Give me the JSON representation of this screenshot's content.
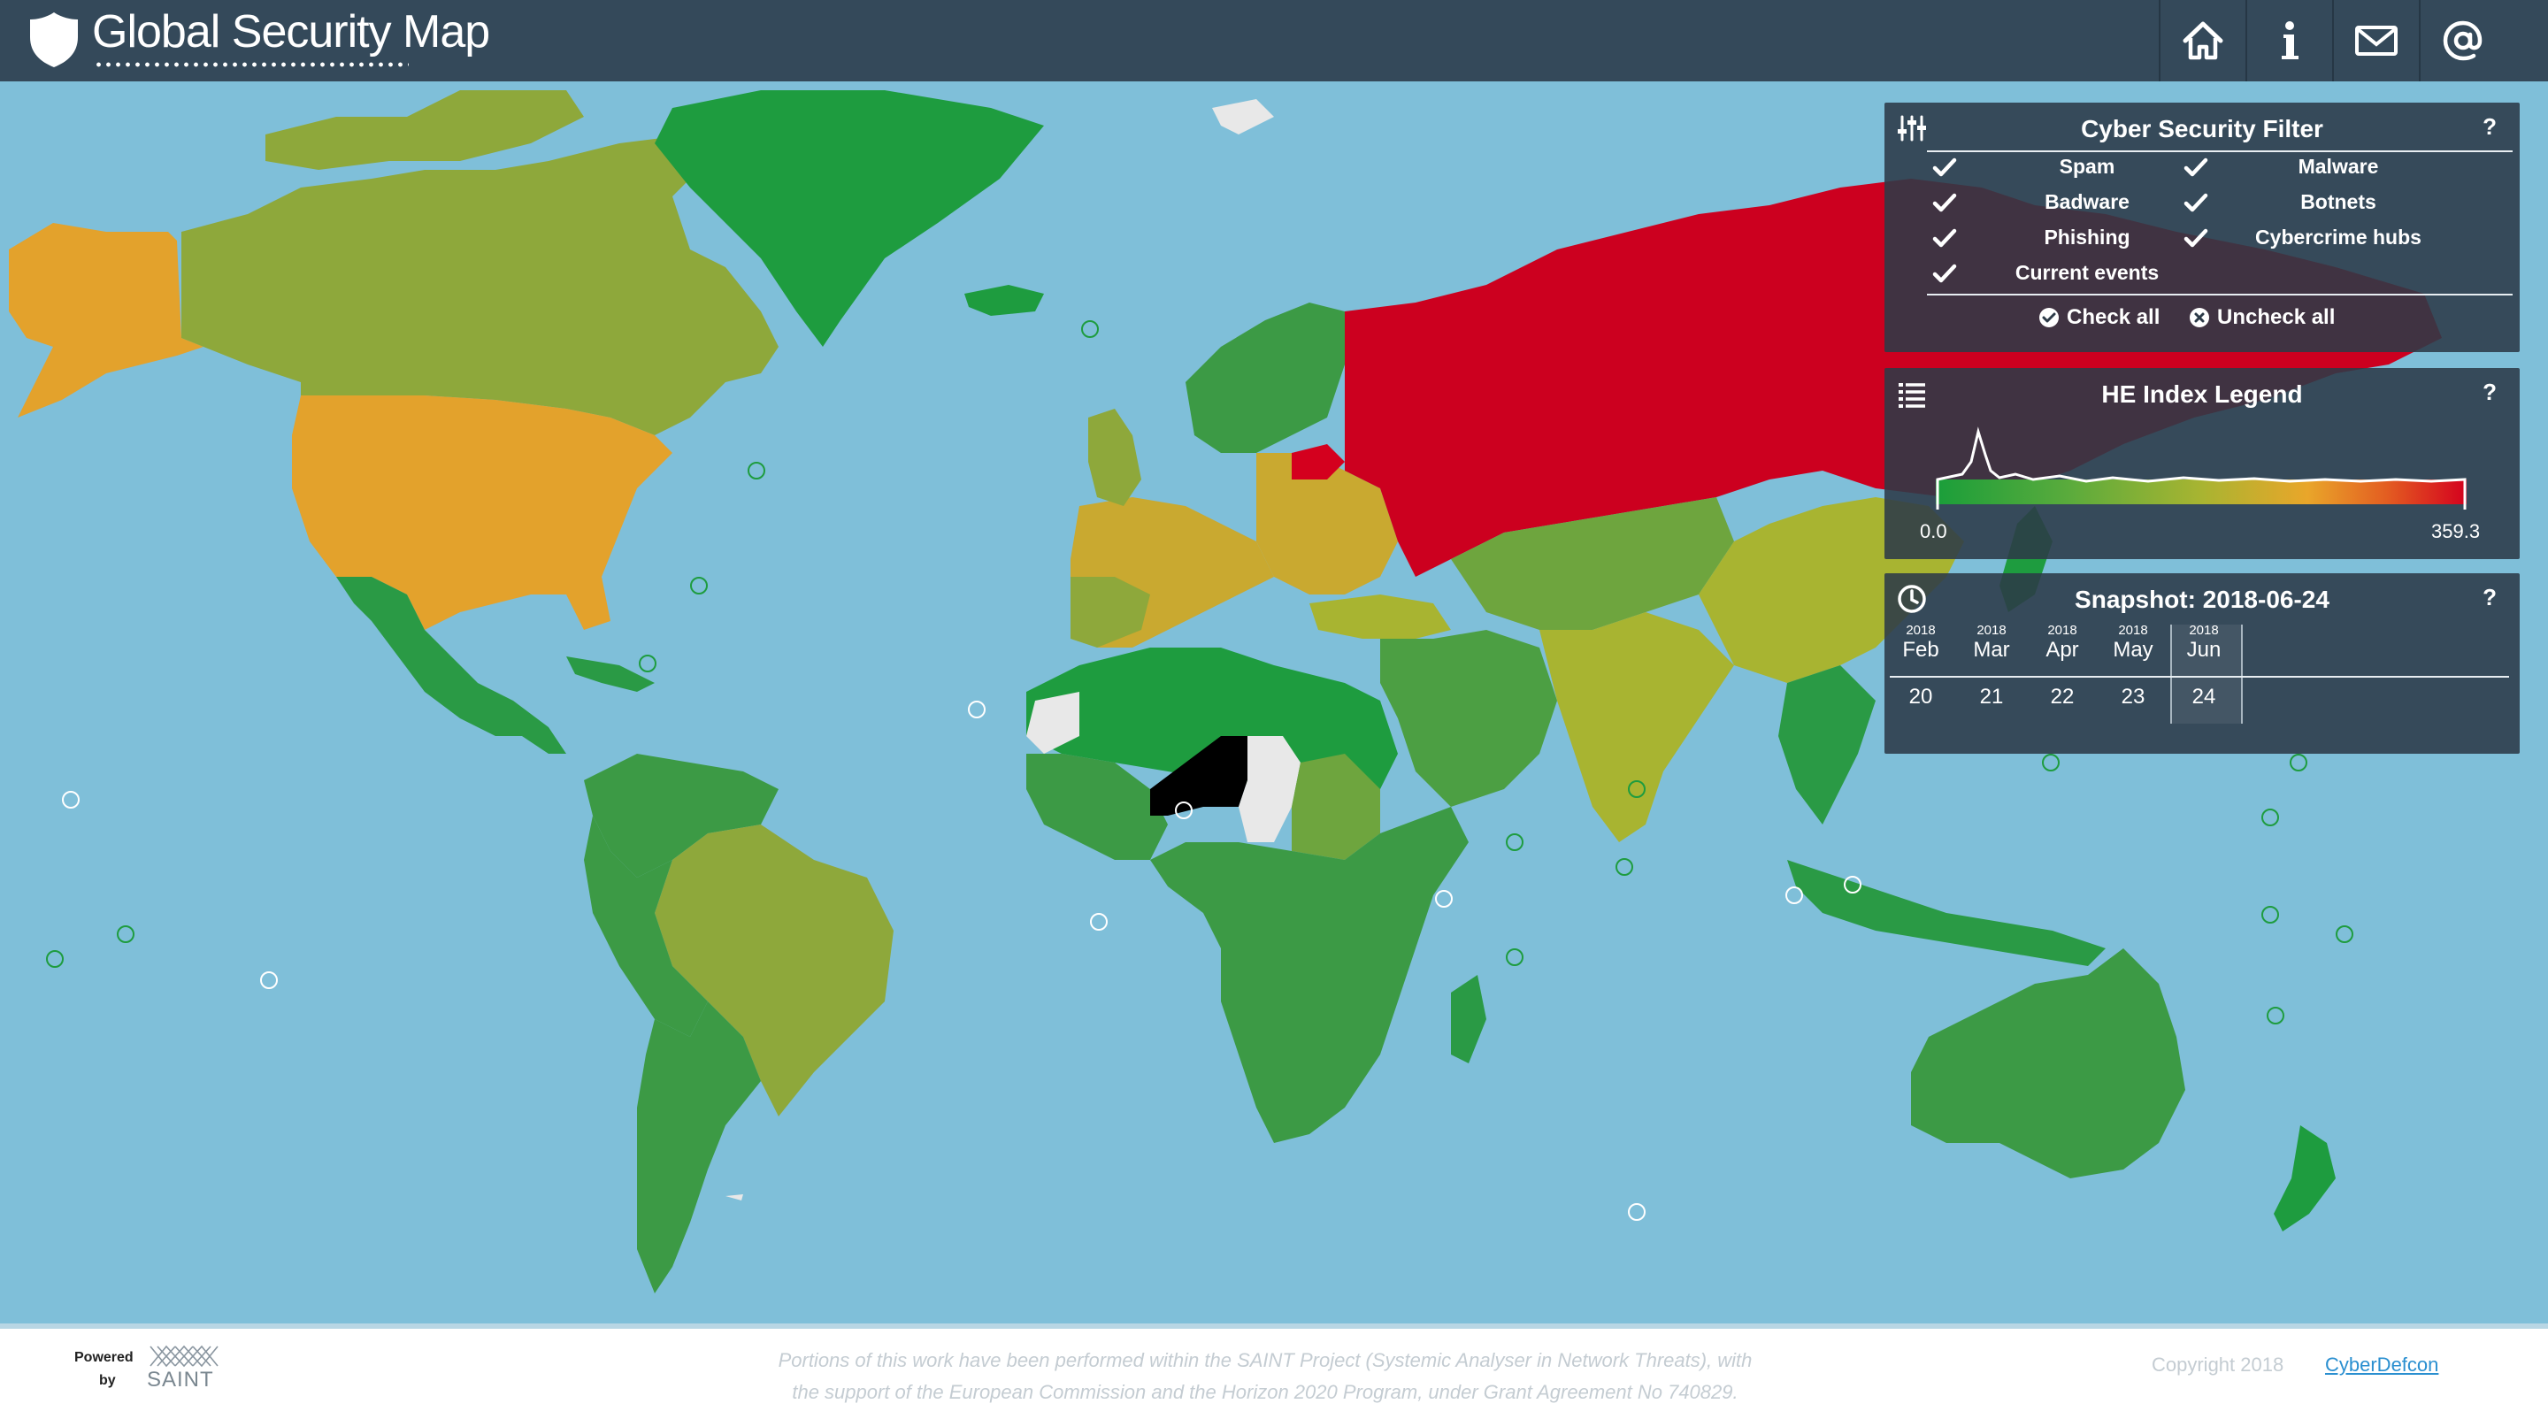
{
  "app": {
    "title": "Global Security Map"
  },
  "nav": [
    {
      "icon": "home-icon",
      "label": "Home"
    },
    {
      "icon": "info-icon",
      "label": "Info"
    },
    {
      "icon": "mail-icon",
      "label": "Mail"
    },
    {
      "icon": "at-icon",
      "label": "Contact"
    }
  ],
  "filter": {
    "title": "Cyber Security Filter",
    "help": "?",
    "options": [
      {
        "label": "Spam",
        "checked": true
      },
      {
        "label": "Malware",
        "checked": true
      },
      {
        "label": "Badware",
        "checked": true
      },
      {
        "label": "Botnets",
        "checked": true
      },
      {
        "label": "Phishing",
        "checked": true
      },
      {
        "label": "Cybercrime hubs",
        "checked": true
      },
      {
        "label": "Current events",
        "checked": true
      }
    ],
    "check_all": "Check all",
    "uncheck_all": "Uncheck all"
  },
  "legend": {
    "title": "HE Index Legend",
    "help": "?",
    "min": "0.0",
    "max": "359.3"
  },
  "snapshot": {
    "title": "Snapshot: 2018-06-24",
    "help": "?",
    "months": [
      {
        "year": "2018",
        "month": "Feb",
        "day": "20"
      },
      {
        "year": "2018",
        "month": "Mar",
        "day": "21"
      },
      {
        "year": "2018",
        "month": "Apr",
        "day": "22"
      },
      {
        "year": "2018",
        "month": "May",
        "day": "23"
      },
      {
        "year": "2018",
        "month": "Jun",
        "day": "24"
      }
    ],
    "selected_month": "Jun"
  },
  "footer": {
    "powered": "Powered",
    "by": "by",
    "saint": "SAINT",
    "funding_line1": "Portions of this work have been performed within the SAINT Project (Systemic Analyser in Network Threats), with",
    "funding_line2": "the support of the European Commission and the Horizon 2020 Program, under Grant Agreement No 740829.",
    "copyright": "Copyright 2018",
    "link": "CyberDefcon"
  },
  "colors": {
    "header_bg": "#34495a",
    "ocean": "#7fbfd9",
    "low": "#1a9e3a",
    "mid": "#a8b431",
    "high": "#d4001e",
    "link": "#2a8fd0"
  }
}
